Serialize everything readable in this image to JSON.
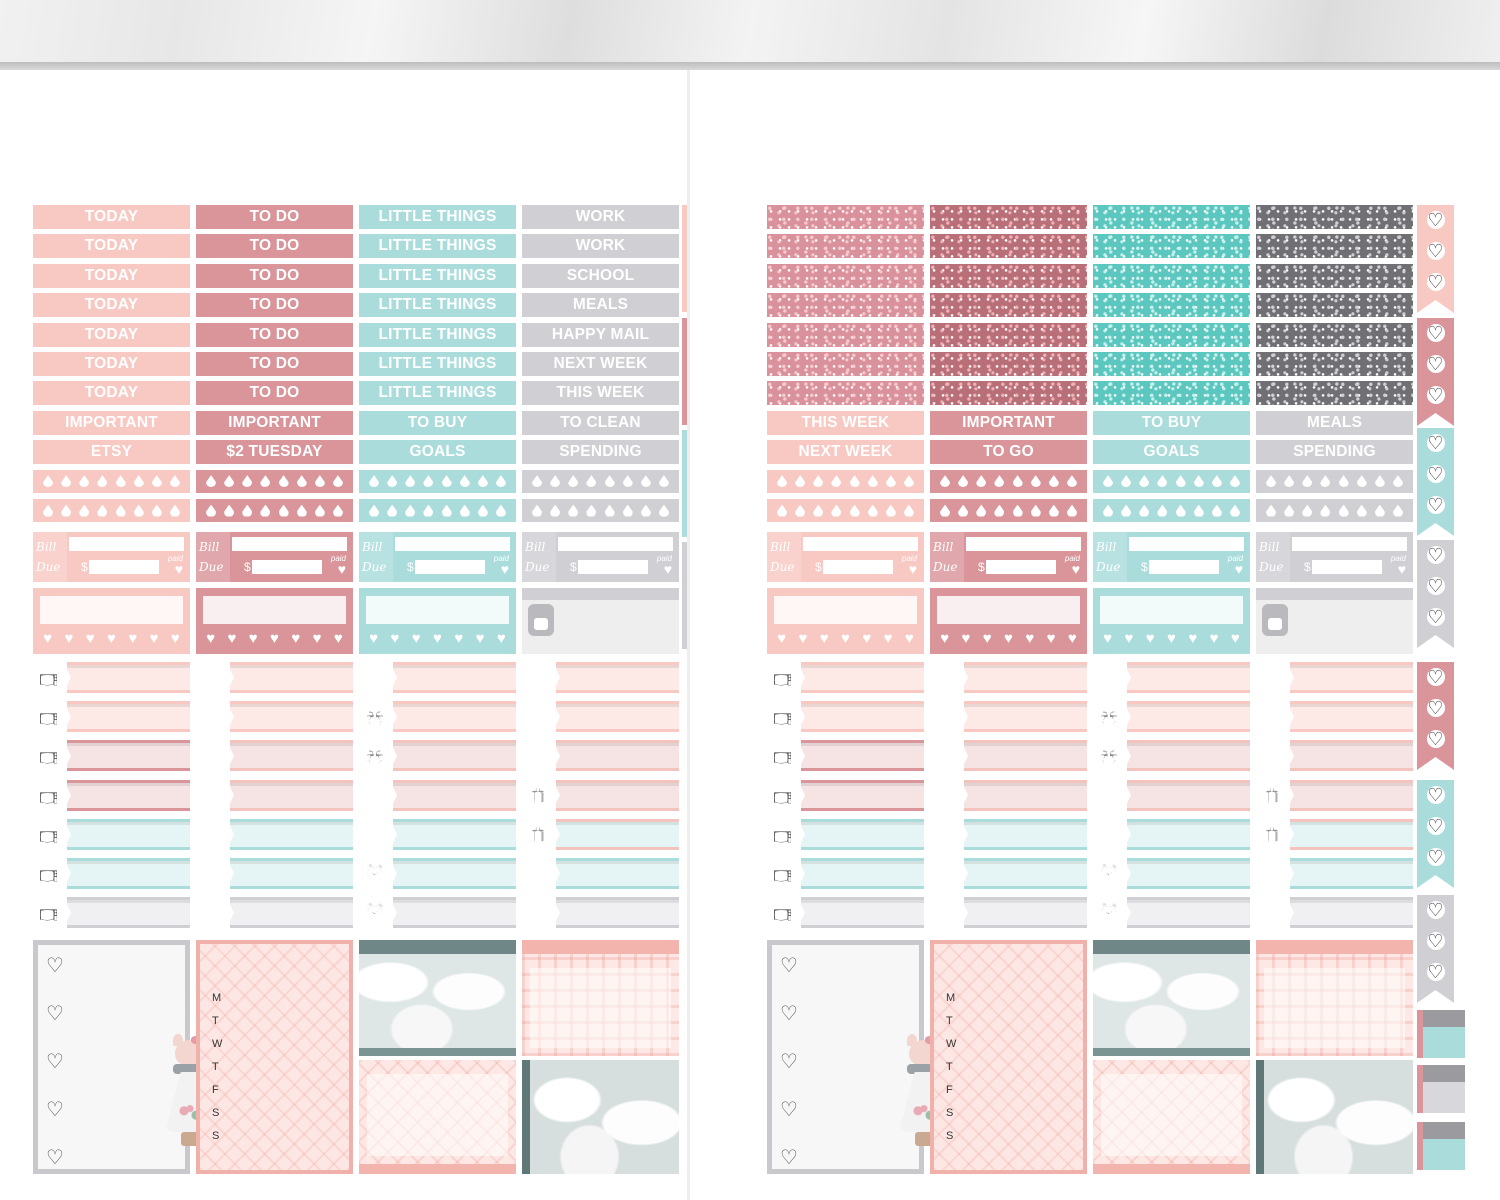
{
  "colors": {
    "pink_light": "#f8c8c2",
    "pink_dark": "#d9959a",
    "mint": "#a9dcdb",
    "grey": "#cfcfd4",
    "pink_pale": "#fde9e6",
    "mint_pale": "#e5f5f5"
  },
  "left": {
    "col1": [
      "TODAY",
      "TODAY",
      "TODAY",
      "TODAY",
      "TODAY",
      "TODAY",
      "TODAY",
      "IMPORTANT",
      "ETSY"
    ],
    "col2": [
      "TO DO",
      "TO DO",
      "TO DO",
      "TO DO",
      "TO DO",
      "TO DO",
      "TO DO",
      "IMPORTANT",
      "$2 TUESDAY"
    ],
    "col3": [
      "LITTLE THINGS",
      "LITTLE THINGS",
      "LITTLE THINGS",
      "LITTLE THINGS",
      "LITTLE THINGS",
      "LITTLE THINGS",
      "LITTLE THINGS",
      "TO BUY",
      "GOALS"
    ],
    "col4": [
      "WORK",
      "WORK",
      "SCHOOL",
      "MEALS",
      "HAPPY MAIL",
      "NEXT WEEK",
      "THIS WEEK",
      "TO CLEAN",
      "SPENDING"
    ]
  },
  "right": {
    "col1": [
      "THIS WEEK",
      "NEXT WEEK"
    ],
    "col2": [
      "IMPORTANT",
      "TO GO"
    ],
    "col3": [
      "TO BUY",
      "GOALS"
    ],
    "col4": [
      "MEALS",
      "SPENDING"
    ]
  },
  "bill": {
    "bill_word": "Bill",
    "due_word": "Due",
    "dollar": "$",
    "paid": "paid"
  },
  "weekdays": [
    "M",
    "T",
    "W",
    "T",
    "F",
    "S",
    "S"
  ],
  "icons": {
    "col1": [
      "tv-icon",
      "tv-icon",
      "tv-icon",
      "tv-icon",
      "tv-icon",
      "tv-icon",
      "tv-icon"
    ],
    "col2": [
      "dinner-icon",
      "dinner-icon",
      "dinner-icon",
      "dinner-icon",
      "dinner-icon",
      "dinner-icon",
      "dinner-icon"
    ],
    "col3": [
      "envelope-icon",
      "bow-icon",
      "bow-icon",
      "cheers-icon",
      "cheers-icon",
      "alarm-clock-icon",
      "alarm-clock-icon"
    ],
    "col4": [
      "cart-icon",
      "cart-icon",
      "cart-icon",
      "gift-icon",
      "gift-icon",
      "heart-icon",
      "heart-icon"
    ]
  }
}
